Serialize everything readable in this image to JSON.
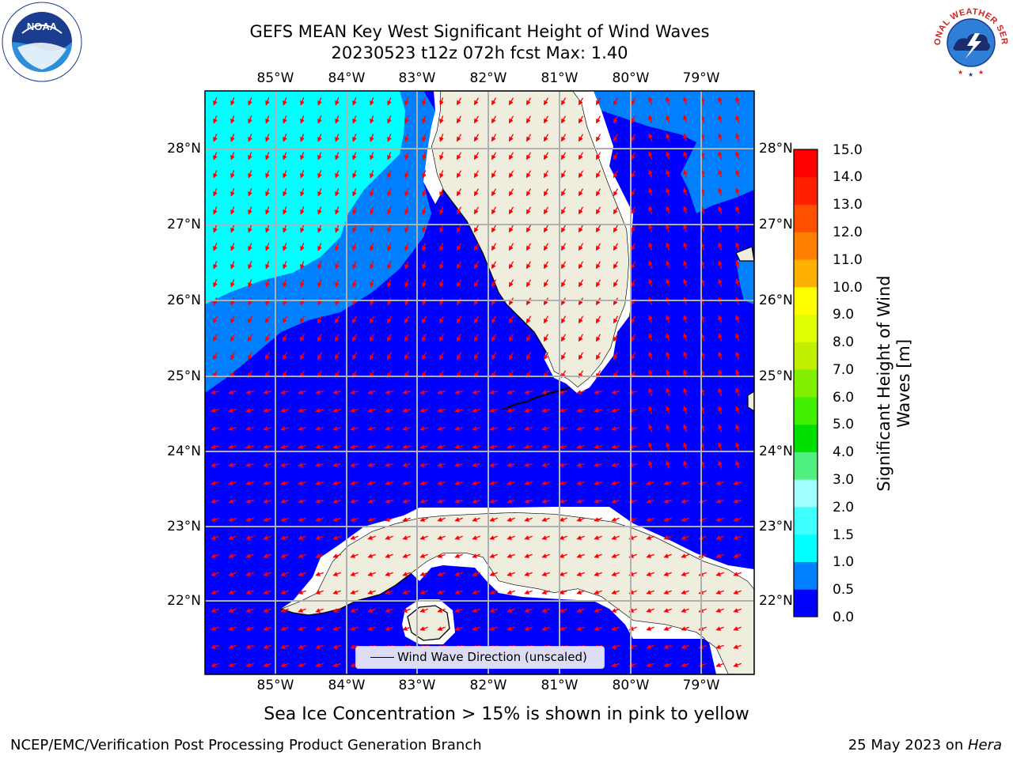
{
  "header": {
    "title_line1": "GEFS MEAN Key West Significant Height of Wind Waves",
    "title_line2": "20230523 t12z 072h fcst   Max: 1.40"
  },
  "logos": {
    "left": "NOAA",
    "right": "NATIONAL WEATHER SERVICE"
  },
  "map": {
    "longitude_labels": [
      "85°W",
      "84°W",
      "83°W",
      "82°W",
      "81°W",
      "80°W",
      "79°W"
    ],
    "latitude_labels": [
      "28°N",
      "27°N",
      "26°N",
      "25°N",
      "24°N",
      "23°N",
      "22°N"
    ],
    "legend_label": "Wind Wave Direction (unscaled)",
    "arrow_color": "#ff0000",
    "land_color": "#efedde",
    "grid_color": "#b0b0b0"
  },
  "colorbar": {
    "label_line1": "Significant Height of Wind",
    "label_line2": "Waves [m]",
    "ticks": [
      "15.0",
      "14.0",
      "13.0",
      "12.0",
      "11.0",
      "10.0",
      "9.0",
      "8.0",
      "7.0",
      "6.0",
      "5.0",
      "4.0",
      "3.0",
      "2.0",
      "1.5",
      "1.0",
      "0.5",
      "0.0"
    ],
    "colors_bottom_to_top": [
      "#0000ff",
      "#0080ff",
      "#00ffff",
      "#40ffff",
      "#70ffff",
      "#a0ffff",
      "#50f080",
      "#00e000",
      "#40f000",
      "#80f000",
      "#c0f000",
      "#e0ff00",
      "#ffff00",
      "#ffe000",
      "#ffb000",
      "#ff8000",
      "#ff5000",
      "#ff2000",
      "#ff0000"
    ]
  },
  "notes": {
    "sea_ice": "Sea Ice Concentration > 15% is shown in pink to yellow"
  },
  "footer": {
    "left": "NCEP/EMC/Verification Post Processing Product Generation Branch",
    "date": "25 May 2023 on ",
    "host": "Hera"
  }
}
